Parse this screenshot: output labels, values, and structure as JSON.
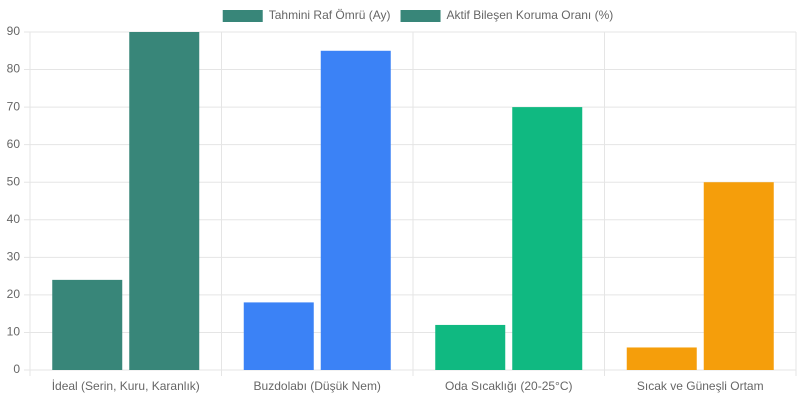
{
  "chart_data": {
    "type": "bar",
    "categories": [
      "İdeal (Serin, Kuru, Karanlık)",
      "Buzdolabı (Düşük Nem)",
      "Oda Sıcaklığı (20-25°C)",
      "Sıcak ve Güneşli Ortam"
    ],
    "series": [
      {
        "name": "Tahmini Raf Ömrü (Ay)",
        "colors": [
          "#388679",
          "#3b82f6",
          "#10b981",
          "#f59e0b"
        ],
        "values": [
          24,
          18,
          12,
          6
        ]
      },
      {
        "name": "Aktif Bileşen Koruma Oranı (%)",
        "colors": [
          "#388679",
          "#3b82f6",
          "#10b981",
          "#f59e0b"
        ],
        "values": [
          90,
          85,
          70,
          50
        ]
      }
    ],
    "ylim": [
      0,
      90
    ],
    "yticks": [
      0,
      10,
      20,
      30,
      40,
      50,
      60,
      70,
      80,
      90
    ],
    "grid": true,
    "legend": "top"
  }
}
